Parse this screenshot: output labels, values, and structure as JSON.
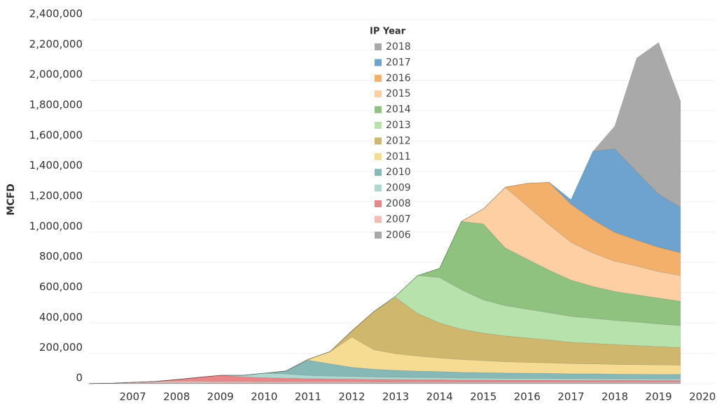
{
  "chart_data": {
    "type": "stacked_area",
    "y_label": "MCFD",
    "legend_title": "IP Year",
    "legend_position": "top-center",
    "grid": true,
    "xlim": [
      2006,
      2020.3
    ],
    "xticks": [
      2007,
      2008,
      2009,
      2010,
      2011,
      2012,
      2013,
      2014,
      2015,
      2016,
      2017,
      2018,
      2019,
      2020
    ],
    "ylim": [
      0,
      2400000
    ],
    "yticks": [
      {
        "value": 0,
        "label": "0"
      },
      {
        "value": 200000,
        "label": "200,000"
      },
      {
        "value": 400000,
        "label": "400,000"
      },
      {
        "value": 600000,
        "label": "600,000"
      },
      {
        "value": 800000,
        "label": "800,000"
      },
      {
        "value": 1000000,
        "label": "1,000,000"
      },
      {
        "value": 1200000,
        "label": "1,200,000"
      },
      {
        "value": 1400000,
        "label": "1,400,000"
      },
      {
        "value": 1600000,
        "label": "1,600,000"
      },
      {
        "value": 1800000,
        "label": "1,800,000"
      },
      {
        "value": 2000000,
        "label": "2,000,000"
      },
      {
        "value": 2200000,
        "label": "2,200,000"
      },
      {
        "value": 2400000,
        "label": "2,400,000"
      }
    ],
    "x": [
      2006,
      2006.5,
      2007,
      2007.5,
      2008,
      2008.5,
      2009,
      2009.5,
      2010,
      2010.5,
      2011,
      2011.5,
      2012,
      2012.5,
      2013,
      2013.5,
      2014,
      2014.5,
      2015,
      2015.5,
      2016,
      2016.5,
      2017,
      2017.5,
      2018,
      2018.5,
      2019,
      2019.5
    ],
    "series": [
      {
        "name": "2018",
        "color": "#a9a9a9",
        "values": [
          0,
          0,
          0,
          0,
          0,
          0,
          0,
          0,
          0,
          0,
          0,
          0,
          0,
          0,
          0,
          0,
          0,
          0,
          0,
          0,
          0,
          0,
          0,
          0,
          150000,
          750000,
          1000000,
          700000
        ]
      },
      {
        "name": "2017",
        "color": "#6fa3cf",
        "values": [
          0,
          0,
          0,
          0,
          0,
          0,
          0,
          0,
          0,
          0,
          0,
          0,
          0,
          0,
          0,
          0,
          0,
          0,
          0,
          0,
          0,
          0,
          30000,
          450000,
          550000,
          450000,
          350000,
          300000
        ]
      },
      {
        "name": "2016",
        "color": "#f2b06a",
        "values": [
          0,
          0,
          0,
          0,
          0,
          0,
          0,
          0,
          0,
          0,
          0,
          0,
          0,
          0,
          0,
          0,
          0,
          0,
          0,
          0,
          150000,
          280000,
          250000,
          220000,
          190000,
          170000,
          160000,
          150000
        ]
      },
      {
        "name": "2015",
        "color": "#fdcfa3",
        "values": [
          0,
          0,
          0,
          0,
          0,
          0,
          0,
          0,
          0,
          0,
          0,
          0,
          0,
          0,
          0,
          0,
          0,
          0,
          100000,
          400000,
          350000,
          300000,
          250000,
          220000,
          200000,
          190000,
          175000,
          170000
        ]
      },
      {
        "name": "2014",
        "color": "#8fc17f",
        "values": [
          0,
          0,
          0,
          0,
          0,
          0,
          0,
          0,
          0,
          0,
          0,
          0,
          0,
          0,
          0,
          0,
          60000,
          450000,
          500000,
          380000,
          330000,
          280000,
          240000,
          210000,
          190000,
          180000,
          170000,
          160000
        ]
      },
      {
        "name": "2013",
        "color": "#b7e2ac",
        "values": [
          0,
          0,
          0,
          0,
          0,
          0,
          0,
          0,
          0,
          0,
          0,
          0,
          0,
          0,
          10000,
          250000,
          300000,
          260000,
          220000,
          200000,
          190000,
          180000,
          170000,
          165000,
          160000,
          155000,
          150000,
          145000
        ]
      },
      {
        "name": "2012",
        "color": "#cfb86e",
        "values": [
          0,
          0,
          0,
          0,
          0,
          0,
          0,
          0,
          0,
          0,
          0,
          0,
          40000,
          250000,
          370000,
          280000,
          230000,
          200000,
          180000,
          170000,
          160000,
          150000,
          140000,
          135000,
          130000,
          125000,
          120000,
          115000
        ]
      },
      {
        "name": "2011",
        "color": "#f6dc93",
        "values": [
          0,
          0,
          0,
          0,
          0,
          0,
          0,
          0,
          0,
          0,
          5000,
          80000,
          200000,
          130000,
          110000,
          100000,
          90000,
          85000,
          80000,
          75000,
          72000,
          70000,
          68000,
          66000,
          65000,
          64000,
          63000,
          62000
        ]
      },
      {
        "name": "2010",
        "color": "#86b8b6",
        "values": [
          0,
          0,
          0,
          0,
          0,
          0,
          0,
          0,
          0,
          20000,
          100000,
          80000,
          60000,
          50000,
          45000,
          42000,
          40000,
          38000,
          36000,
          35000,
          34000,
          33000,
          32000,
          32000,
          31000,
          30000,
          30000,
          30000
        ]
      },
      {
        "name": "2009",
        "color": "#add8d0",
        "values": [
          0,
          0,
          0,
          0,
          0,
          0,
          0,
          10000,
          30000,
          28000,
          22000,
          20000,
          18000,
          17000,
          16000,
          15000,
          14000,
          13000,
          13000,
          12000,
          12000,
          12000,
          11000,
          11000,
          10000,
          10000,
          10000,
          10000
        ]
      },
      {
        "name": "2008",
        "color": "#e8868a",
        "values": [
          0,
          0,
          0,
          0,
          10000,
          25000,
          40000,
          30000,
          25000,
          22000,
          20000,
          18000,
          17000,
          16000,
          15000,
          14000,
          14000,
          13000,
          13000,
          12000,
          12000,
          12000,
          11000,
          11000,
          11000,
          11000,
          10000,
          10000
        ]
      },
      {
        "name": "2007",
        "color": "#f4bcb5",
        "values": [
          0,
          0,
          5000,
          10000,
          12000,
          12000,
          10000,
          10000,
          9000,
          9000,
          8000,
          8000,
          8000,
          7000,
          7000,
          7000,
          7000,
          6000,
          6000,
          6000,
          6000,
          6000,
          6000,
          6000,
          6000,
          6000,
          6000,
          6000
        ]
      },
      {
        "name": "2006",
        "color": "#a8a8a8",
        "values": [
          1000,
          3000,
          4000,
          5000,
          5000,
          5000,
          5000,
          5000,
          5000,
          5000,
          5000,
          5000,
          5000,
          5000,
          5000,
          5000,
          5000,
          5000,
          5000,
          5000,
          5000,
          5000,
          5000,
          5000,
          5000,
          5000,
          5000,
          5000
        ]
      }
    ]
  }
}
